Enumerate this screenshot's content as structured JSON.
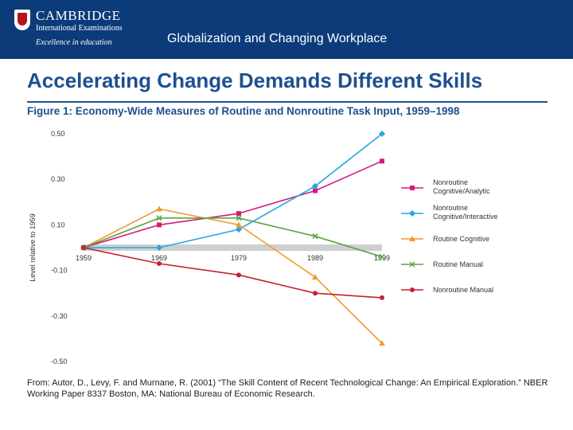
{
  "header": {
    "brand_name": "CAMBRIDGE",
    "brand_subtitle": "International Examinations",
    "brand_tagline": "Excellence in education",
    "banner_title": "Globalization and Changing Workplace"
  },
  "slide": {
    "title": "Accelerating Change Demands Different Skills"
  },
  "colors": {
    "banner": "#0c3b7a",
    "title": "#1f4f8f",
    "brand_crest": "#b5151b"
  },
  "chart_data": {
    "type": "line",
    "title": "Figure 1: Economy-Wide Measures of Routine and Nonroutine Task Input, 1959–1998",
    "ylabel": "Level relative to 1959",
    "xlabel": "",
    "x": [
      "1959",
      "1969",
      "1979",
      "1989",
      "1999"
    ],
    "ylim": [
      -0.5,
      0.5
    ],
    "yticks": [
      "0.50",
      "0.30",
      "0.10",
      "-0.10",
      "-0.30",
      "-0.50"
    ],
    "grid": false,
    "legend_position": "right",
    "series": [
      {
        "name": "Nonroutine Cognitive/Analytic",
        "color": "#d6197f",
        "marker": "square",
        "values": [
          0.0,
          0.1,
          0.15,
          0.25,
          0.38
        ]
      },
      {
        "name": "Nonroutine Cognitive/Interactive",
        "color": "#27a6dd",
        "marker": "diamond",
        "values": [
          0.0,
          0.0,
          0.08,
          0.27,
          0.5
        ]
      },
      {
        "name": "Routine Cognitive",
        "color": "#f29a2e",
        "marker": "triangle",
        "values": [
          0.0,
          0.17,
          0.1,
          -0.13,
          -0.42
        ]
      },
      {
        "name": "Routine Manual",
        "color": "#5aa346",
        "marker": "x",
        "values": [
          0.0,
          0.13,
          0.13,
          0.05,
          -0.04
        ]
      },
      {
        "name": "Nonroutine Manual",
        "color": "#c7202f",
        "marker": "circle",
        "values": [
          0.0,
          -0.07,
          -0.12,
          -0.2,
          -0.22
        ]
      }
    ]
  },
  "source": {
    "text": "From: Autor, D., Levy, F. and Murnane, R. (2001) “The Skill Content of Recent Technological Change: An Empirical Exploration.” NBER Working Paper 8337 Boston, MA: National Bureau of Economic Research."
  }
}
